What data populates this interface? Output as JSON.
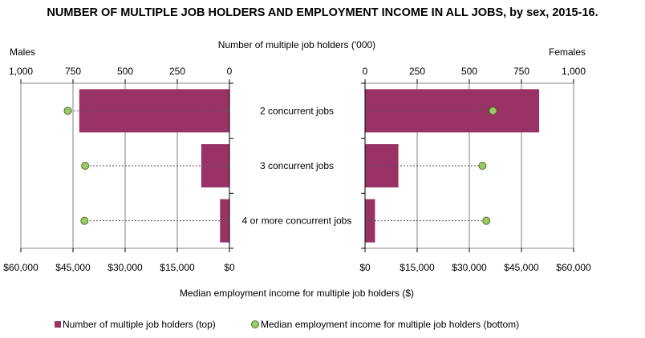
{
  "chart_data": {
    "type": "bar",
    "title": "NUMBER OF MULTIPLE JOB HOLDERS AND EMPLOYMENT INCOME IN ALL JOBS, by sex, 2015-16.",
    "top_axis_label": "Number of multiple job holders ('000)",
    "bottom_axis_label": "Median employment  income for multiple job holders ($)",
    "left_panel_label": "Males",
    "right_panel_label": "Females",
    "categories": [
      "2 concurrent jobs",
      "3 concurrent jobs",
      "4 or more concurrent jobs"
    ],
    "count_ticks": [
      "0",
      "250",
      "500",
      "750",
      "1,000"
    ],
    "count_tick_values": [
      0,
      250,
      500,
      750,
      1000
    ],
    "income_ticks": [
      "$0",
      "$15,000",
      "$30,000",
      "$45,000",
      "$60,000"
    ],
    "income_tick_values": [
      0,
      15000,
      30000,
      45000,
      60000
    ],
    "count_range": [
      0,
      1000
    ],
    "income_range": [
      0,
      60000
    ],
    "series": [
      {
        "name": "Number of multiple job holders (top)",
        "type": "bar",
        "unit": "'000",
        "males": [
          720,
          135,
          45
        ],
        "females": [
          835,
          160,
          48
        ]
      },
      {
        "name": "Median employment income for multiple job holders (bottom)",
        "type": "scatter",
        "unit": "$",
        "males": [
          46500,
          41500,
          41700
        ],
        "females": [
          36800,
          33800,
          34900
        ]
      }
    ],
    "colors": {
      "bar": "#993366",
      "point": "#99cc66",
      "point_stroke": "#556b2f",
      "grid": "#808080"
    },
    "legend_placement": "bottom"
  }
}
